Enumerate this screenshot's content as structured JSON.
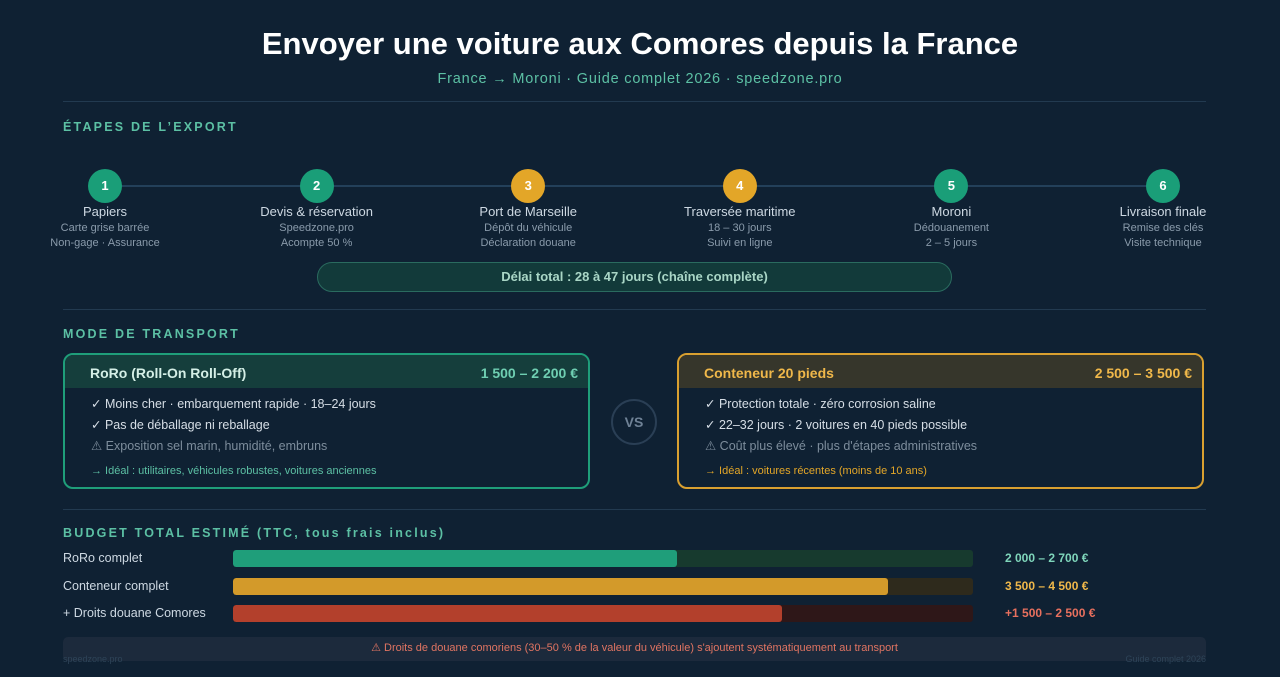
{
  "header": {
    "title": "Envoyer une voiture aux Comores depuis la France",
    "subtitle": "France → Moroni · Guide complet 2026 · speedzone.pro"
  },
  "steps": {
    "heading": "ÉTAPES DE L’EXPORT",
    "items": [
      {
        "number": "1",
        "title": "Papiers",
        "lines": [
          "Carte grise barrée",
          "Non-gage · Assurance"
        ]
      },
      {
        "number": "2",
        "title": "Devis & réservation",
        "lines": [
          "Speedzone.pro",
          "Acompte 50 %"
        ]
      },
      {
        "number": "3",
        "title": "Port de Marseille",
        "lines": [
          "Dépôt du véhicule",
          "Déclaration douane"
        ]
      },
      {
        "number": "4",
        "title": "Traversée maritime",
        "lines": [
          "18 – 30 jours",
          "Suivi en ligne"
        ]
      },
      {
        "number": "5",
        "title": "Moroni",
        "lines": [
          "Dédouanement",
          "2 – 5 jours"
        ]
      },
      {
        "number": "6",
        "title": "Livraison finale",
        "lines": [
          "Remise des clés",
          "Visite technique"
        ]
      }
    ],
    "total": "Délai total : 28 à 47 jours (chaîne complète)"
  },
  "transport": {
    "heading": "MODE DE TRANSPORT",
    "vs": "VS",
    "options": [
      {
        "title": "RoRo (Roll-On Roll-Off)",
        "price": "1 500 – 2 200 €",
        "points": [
          "✓ Moins cher · embarquement rapide · 18–24 jours",
          "✓ Pas de déballage ni reballage"
        ],
        "warning": "⚠ Exposition sel marin, humidité, embruns",
        "ideal": "→ Idéal : utilitaires, véhicules robustes, voitures anciennes"
      },
      {
        "title": "Conteneur 20 pieds",
        "price": "2 500 – 3 500 €",
        "points": [
          "✓ Protection totale · zéro corrosion saline",
          "✓ 22–32 jours · 2 voitures en 40 pieds possible"
        ],
        "warning": "⚠ Coût plus élevé · plus d'étapes administratives",
        "ideal": "→ Idéal : voitures récentes (moins de 10 ans)"
      }
    ]
  },
  "budget": {
    "heading": "BUDGET TOTAL ESTIMÉ (TTC, tous frais inclus)",
    "rows": [
      {
        "label": "RoRo complet",
        "value": "2 000 – 2 700 €"
      },
      {
        "label": "Conteneur complet",
        "value": "3 500 – 4 500 €"
      },
      {
        "label": "+ Droits douane Comores",
        "value": "+1 500 – 2 500 €"
      }
    ],
    "note": "⚠ Droits de douane comoriens (30–50 % de la valeur du véhicule) s'ajoutent systématiquement au transport"
  },
  "footer": {
    "left": "speedzone.pro",
    "right": "Guide complet 2026"
  }
}
